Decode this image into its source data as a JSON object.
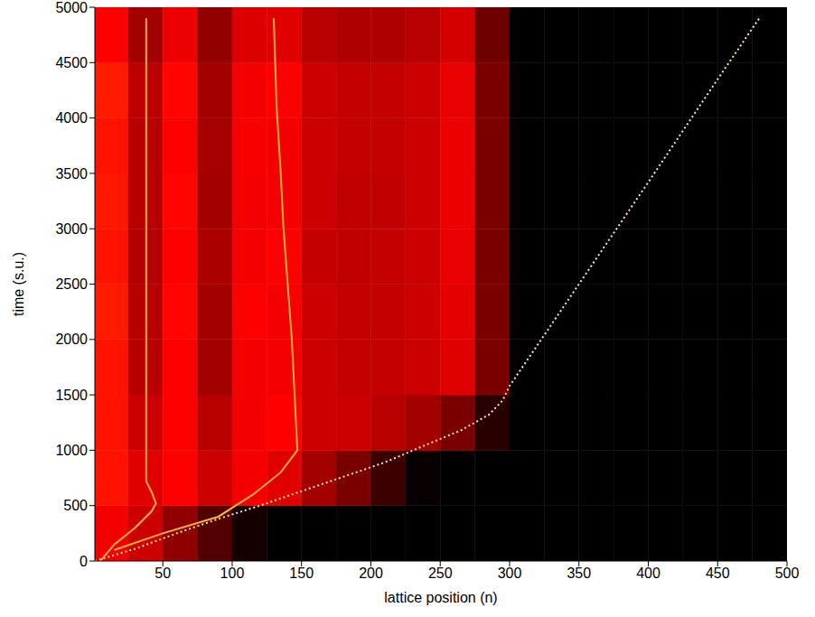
{
  "chart_data": {
    "type": "heatmap",
    "xlabel": "lattice position (n)",
    "ylabel": "time (s.u.)",
    "xlim": [
      1,
      500
    ],
    "xticks": [
      50,
      100,
      150,
      200,
      250,
      300,
      350,
      400,
      450,
      500
    ],
    "ylim": [
      0,
      5000
    ],
    "yticks": [
      0,
      500,
      1000,
      1500,
      2000,
      2500,
      3000,
      3500,
      4000,
      4500,
      5000
    ],
    "cells": {
      "x_bins": [
        1,
        25,
        50,
        75,
        100,
        125,
        150,
        175,
        200,
        225,
        250,
        275,
        300,
        325,
        350,
        375,
        400,
        425,
        450,
        475,
        500
      ],
      "y_bins": [
        0,
        500,
        1000,
        1500,
        2000,
        2500,
        3000,
        3500,
        4000,
        4500,
        5000
      ],
      "clim": [
        0,
        1
      ],
      "values": [
        [
          0.6,
          0.5,
          0.35,
          0.2,
          0.05,
          0,
          0,
          0,
          0,
          0,
          0,
          0,
          0,
          0,
          0,
          0,
          0,
          0,
          0,
          0
        ],
        [
          0.7,
          0.55,
          0.65,
          0.5,
          0.6,
          0.55,
          0.4,
          0.3,
          0.15,
          0.02,
          0,
          0,
          0,
          0,
          0,
          0,
          0,
          0,
          0,
          0
        ],
        [
          0.7,
          0.5,
          0.65,
          0.45,
          0.6,
          0.65,
          0.5,
          0.5,
          0.45,
          0.4,
          0.3,
          0.1,
          0,
          0,
          0,
          0,
          0,
          0,
          0,
          0
        ],
        [
          0.7,
          0.45,
          0.65,
          0.4,
          0.6,
          0.6,
          0.5,
          0.48,
          0.48,
          0.5,
          0.55,
          0.3,
          0,
          0,
          0,
          0,
          0,
          0,
          0,
          0
        ],
        [
          0.72,
          0.45,
          0.66,
          0.4,
          0.62,
          0.6,
          0.5,
          0.48,
          0.48,
          0.5,
          0.56,
          0.3,
          0,
          0,
          0,
          0,
          0,
          0,
          0,
          0
        ],
        [
          0.7,
          0.44,
          0.65,
          0.42,
          0.6,
          0.62,
          0.48,
          0.47,
          0.48,
          0.5,
          0.57,
          0.3,
          0,
          0,
          0,
          0,
          0,
          0,
          0,
          0
        ],
        [
          0.71,
          0.45,
          0.66,
          0.4,
          0.6,
          0.6,
          0.5,
          0.47,
          0.47,
          0.5,
          0.58,
          0.3,
          0,
          0,
          0,
          0,
          0,
          0,
          0,
          0
        ],
        [
          0.7,
          0.45,
          0.65,
          0.41,
          0.61,
          0.6,
          0.5,
          0.48,
          0.48,
          0.5,
          0.58,
          0.3,
          0,
          0,
          0,
          0,
          0,
          0,
          0,
          0
        ],
        [
          0.72,
          0.46,
          0.66,
          0.4,
          0.6,
          0.62,
          0.5,
          0.48,
          0.48,
          0.5,
          0.57,
          0.3,
          0,
          0,
          0,
          0,
          0,
          0,
          0,
          0
        ],
        [
          0.63,
          0.4,
          0.58,
          0.36,
          0.54,
          0.55,
          0.45,
          0.43,
          0.43,
          0.45,
          0.52,
          0.27,
          0,
          0,
          0,
          0,
          0,
          0,
          0,
          0
        ]
      ]
    },
    "series": [
      {
        "color": "#ffe4b0",
        "line_style": "dotted",
        "x": [
          1,
          30,
          60,
          90,
          120,
          150,
          180,
          210,
          240,
          265,
          285,
          295,
          300,
          350,
          400,
          450,
          480
        ],
        "values": [
          0,
          110,
          250,
          380,
          500,
          630,
          760,
          890,
          1050,
          1180,
          1320,
          1450,
          1580,
          2500,
          3420,
          4350,
          4900
        ]
      },
      {
        "color": "#ffb040",
        "line_style": "solid",
        "x": [
          5,
          15,
          30,
          42,
          45,
          42,
          38,
          38
        ],
        "values": [
          0,
          150,
          300,
          450,
          520,
          620,
          720,
          4900
        ]
      },
      {
        "color": "#ffb040",
        "line_style": "solid",
        "x": [
          15,
          50,
          90,
          115,
          135,
          147,
          145,
          143,
          140,
          137,
          135,
          132,
          130
        ],
        "values": [
          100,
          250,
          400,
          600,
          800,
          1000,
          1500,
          2000,
          2500,
          3000,
          3500,
          4100,
          4900
        ]
      }
    ]
  }
}
